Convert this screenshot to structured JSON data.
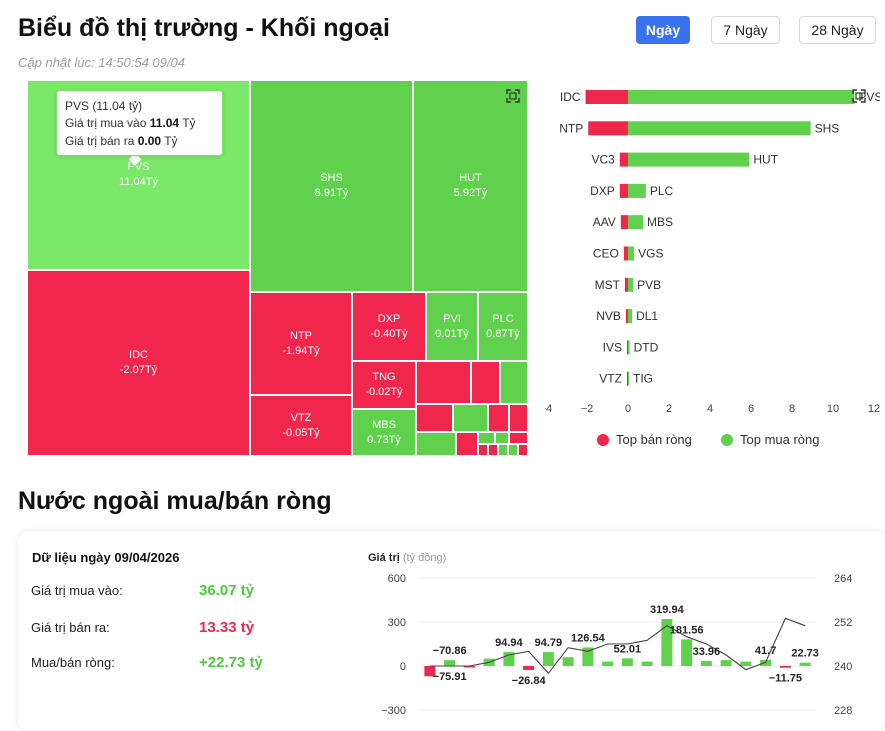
{
  "header": {
    "title": "Biểu đồ thị trường - Khối ngoại",
    "updated": "Cập nhật lúc: 14:50:54 09/04",
    "periods": [
      {
        "label": "Ngày",
        "active": true
      },
      {
        "label": "7 Ngày",
        "active": false
      },
      {
        "label": "28 Ngày",
        "active": false
      }
    ]
  },
  "treemap": {
    "tiles": [
      {
        "code": "PVS",
        "value": "11.04Tỷ",
        "color": "sel"
      },
      {
        "code": "SHS",
        "value": "8.91Tỷ",
        "color": "g"
      },
      {
        "code": "HUT",
        "value": "5.92Tỷ",
        "color": "g"
      },
      {
        "code": "IDC",
        "value": "-2.07Tỷ",
        "color": "r"
      },
      {
        "code": "NTP",
        "value": "-1.94Tỷ",
        "color": "r"
      },
      {
        "code": "DXP",
        "value": "-0.40Tỷ",
        "color": "r"
      },
      {
        "code": "PVI",
        "value": "0.01Tỷ",
        "color": "g"
      },
      {
        "code": "PLC",
        "value": "0.87Tỷ",
        "color": "g"
      },
      {
        "code": "TNG",
        "value": "-0.02Tỷ",
        "color": "r"
      },
      {
        "code": "VTZ",
        "value": "-0.05Tỷ",
        "color": "r"
      },
      {
        "code": "MBS",
        "value": "0.73Tỷ",
        "color": "g"
      }
    ],
    "tooltip": {
      "line1": "PVS (11.04 tỷ)",
      "buy_label": "Giá trị mua vào",
      "buy_value": "11.04",
      "sell_label": "Giá trị bán ra",
      "sell_value": "0.00",
      "unit": "Tỷ"
    },
    "expand_icon": "expand-icon"
  },
  "chart_data": [
    {
      "type": "bar",
      "orientation": "horizontal",
      "sell_series": {
        "name": "Top bán ròng",
        "color": "#f0264d",
        "categories": [
          "IDC",
          "NTP",
          "VC3",
          "DXP",
          "AAV",
          "CEO",
          "MST",
          "NVB",
          "IVS",
          "VTZ"
        ],
        "values": [
          -2.07,
          -1.94,
          -0.4,
          -0.4,
          -0.35,
          -0.2,
          -0.15,
          -0.1,
          -0.05,
          -0.05
        ]
      },
      "buy_series": {
        "name": "Top mua ròng",
        "color": "#5fd14d",
        "categories": [
          "PVS",
          "SHS",
          "HUT",
          "PLC",
          "MBS",
          "VGS",
          "PVB",
          "DL1",
          "DTD",
          "TIG"
        ],
        "values": [
          11.04,
          8.91,
          5.92,
          0.87,
          0.73,
          0.3,
          0.25,
          0.2,
          0.08,
          0.05
        ]
      },
      "xticks": [
        "−4",
        "−2",
        "0",
        "2",
        "4",
        "6",
        "8",
        "10",
        "12"
      ],
      "xlim": [
        -4,
        12
      ],
      "legend_position": "bottom"
    },
    {
      "type": "bar",
      "title": "Giá trị",
      "unit_label": "(tỷ đồng)",
      "yticks_left": [
        "600",
        "300",
        "0",
        "−300"
      ],
      "yticks_right": [
        "264",
        "252",
        "240",
        "228"
      ],
      "ylim_left": [
        -300,
        600
      ],
      "ylim_right": [
        228,
        264
      ],
      "bar_values": [
        -70,
        40,
        -10,
        50,
        94.94,
        -26.84,
        94.79,
        60,
        126.54,
        30,
        52.01,
        30,
        319.94,
        181.56,
        33.96,
        40,
        30,
        41.7,
        -11.75,
        22.73
      ],
      "labels": [
        "−75.91",
        "−70.86",
        "94.94",
        "−26.84",
        "94.79",
        "126.54",
        "52.01",
        "319.94",
        "181.56",
        "33.96",
        "41.7",
        "−11.75",
        "22.73"
      ],
      "line_values": [
        240,
        240,
        240,
        241,
        243,
        244,
        238,
        245,
        244,
        246,
        246,
        247,
        251,
        248,
        246,
        243,
        239,
        241,
        253,
        251
      ]
    }
  ],
  "net": {
    "title": "Nước ngoài mua/bán ròng",
    "date_label": "Dữ liệu ngày 09/04/2026",
    "rows": [
      {
        "label": "Giá trị mua vào:",
        "value": "36.07 tỷ",
        "tone": "green"
      },
      {
        "label": "Giá trị bán ra:",
        "value": "13.33 tỷ",
        "tone": "red"
      },
      {
        "label": "Mua/bán ròng:",
        "value": "+22.73 tỷ",
        "tone": "green"
      }
    ],
    "chart_title": "Giá trị",
    "chart_unit": "(tỷ đồng)"
  },
  "legend": {
    "sell": "Top bán ròng",
    "buy": "Top mua ròng"
  }
}
